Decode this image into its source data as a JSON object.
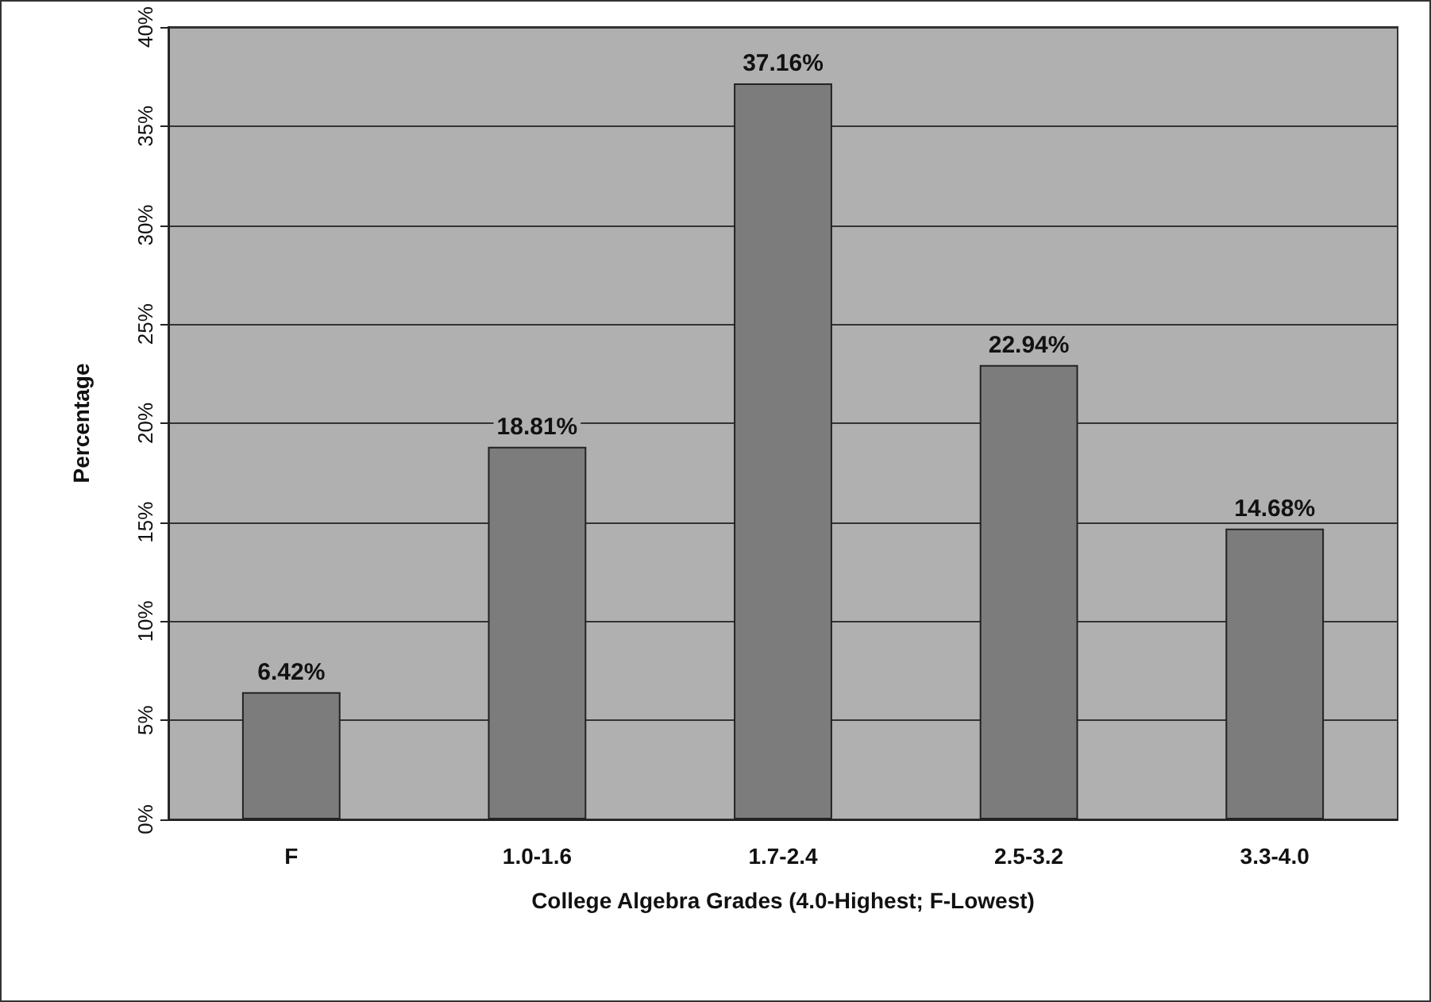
{
  "chart_data": {
    "type": "bar",
    "xlabel": "College Algebra Grades (4.0-Highest; F-Lowest)",
    "ylabel": "Percentage",
    "categories": [
      "F",
      "1.0-1.6",
      "1.7-2.4",
      "2.5-3.2",
      "3.3-4.0"
    ],
    "values": [
      6.42,
      18.81,
      37.16,
      22.94,
      14.68
    ],
    "color": "#7c7c7c",
    "value_labels": [
      "6.42%",
      "18.81%",
      "37.16%",
      "22.94%",
      "14.68%"
    ],
    "ylim": [
      0,
      40
    ],
    "yticks": [
      {
        "value": 0,
        "label": "0%"
      },
      {
        "value": 5,
        "label": "5%"
      },
      {
        "value": 10,
        "label": "10%"
      },
      {
        "value": 15,
        "label": "15%"
      },
      {
        "value": 20,
        "label": "20%"
      },
      {
        "value": 25,
        "label": "25%"
      },
      {
        "value": 30,
        "label": "30%"
      },
      {
        "value": 35,
        "label": "35%"
      },
      {
        "value": 40,
        "label": "40%"
      }
    ],
    "grid": "y"
  }
}
